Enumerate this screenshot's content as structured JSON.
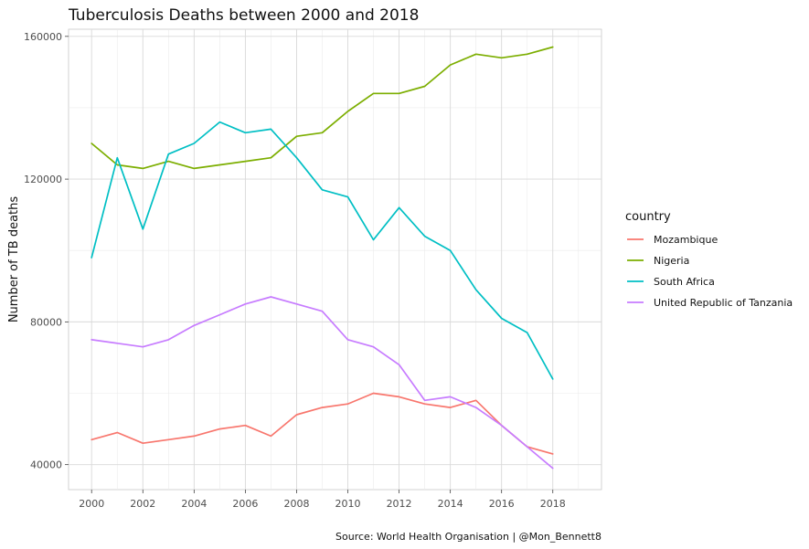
{
  "chart_data": {
    "type": "line",
    "title": "Tuberculosis Deaths between 2000 and 2018",
    "xlabel": "",
    "ylabel": "Number of TB deaths",
    "caption": "Source: World Health Organisation | @Mon_Bennett8",
    "x": [
      2000,
      2001,
      2002,
      2003,
      2004,
      2005,
      2006,
      2007,
      2008,
      2009,
      2010,
      2011,
      2012,
      2013,
      2014,
      2015,
      2016,
      2017,
      2018
    ],
    "xlim": [
      1999.1,
      2019.9
    ],
    "ylim": [
      33000,
      162000
    ],
    "x_ticks": [
      2000,
      2002,
      2004,
      2006,
      2008,
      2010,
      2012,
      2014,
      2016,
      2018
    ],
    "x_tick_labels": [
      "2000",
      "2002",
      "2004",
      "2006",
      "2008",
      "2010",
      "2012",
      "2014",
      "2016",
      "2018"
    ],
    "y_ticks": [
      40000,
      80000,
      120000,
      160000
    ],
    "y_tick_labels": [
      "40000",
      "80000",
      "120000",
      "160000"
    ],
    "grid": true,
    "legend": {
      "title": "country",
      "position": "right"
    },
    "series": [
      {
        "name": "Mozambique",
        "color": "#F8766D",
        "values": [
          47000,
          49000,
          46000,
          47000,
          48000,
          50000,
          51000,
          48000,
          54000,
          56000,
          57000,
          60000,
          59000,
          57000,
          56000,
          58000,
          51000,
          45000,
          43000
        ]
      },
      {
        "name": "Nigeria",
        "color": "#7CAE00",
        "values": [
          130000,
          124000,
          123000,
          125000,
          123000,
          124000,
          125000,
          126000,
          132000,
          133000,
          139000,
          144000,
          144000,
          146000,
          152000,
          155000,
          154000,
          155000,
          157000
        ]
      },
      {
        "name": "South Africa",
        "color": "#00BFC4",
        "values": [
          98000,
          126000,
          106000,
          127000,
          130000,
          136000,
          133000,
          134000,
          126000,
          117000,
          115000,
          103000,
          112000,
          104000,
          100000,
          89000,
          81000,
          77000,
          64000
        ]
      },
      {
        "name": "United Republic of Tanzania",
        "color": "#C77CFF",
        "values": [
          75000,
          74000,
          73000,
          75000,
          79000,
          82000,
          85000,
          87000,
          85000,
          83000,
          75000,
          73000,
          68000,
          58000,
          59000,
          56000,
          51000,
          45000,
          39000
        ]
      }
    ]
  }
}
